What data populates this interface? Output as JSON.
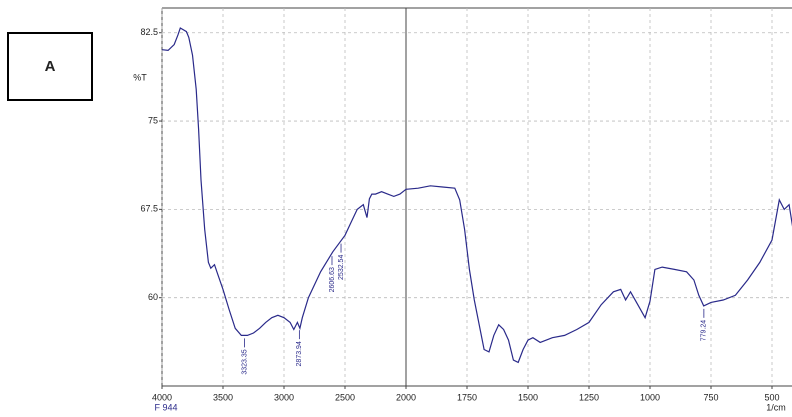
{
  "chart_data": {
    "type": "line",
    "panel_label": "A",
    "y_label": "%T",
    "x_label": "1/cm",
    "sample": "F 944",
    "color": "#2a2a8a",
    "grid": true,
    "xlim": [
      4000,
      400
    ],
    "ylim": [
      52.5,
      84.6
    ],
    "xticks": [
      4000,
      3500,
      3000,
      2500,
      2000,
      1750,
      1500,
      1250,
      1000,
      750,
      500
    ],
    "yticks": [
      {
        "value": 82.5,
        "label": "82.5"
      },
      75,
      {
        "value": 67.5,
        "label": "67.5"
      },
      60
    ],
    "x": [
      4000,
      3950,
      3900,
      3870,
      3850,
      3800,
      3780,
      3750,
      3720,
      3700,
      3680,
      3650,
      3620,
      3600,
      3570,
      3550,
      3500,
      3450,
      3400,
      3350,
      3300,
      3250,
      3200,
      3150,
      3100,
      3050,
      3000,
      2950,
      2920,
      2890,
      2870,
      2850,
      2800,
      2700,
      2600,
      2500,
      2450,
      2400,
      2350,
      2320,
      2300,
      2280,
      2250,
      2200,
      2150,
      2100,
      2050,
      2000,
      1950,
      1900,
      1850,
      1800,
      1780,
      1760,
      1740,
      1720,
      1700,
      1680,
      1660,
      1640,
      1620,
      1600,
      1580,
      1560,
      1540,
      1520,
      1500,
      1480,
      1450,
      1400,
      1350,
      1300,
      1250,
      1200,
      1150,
      1120,
      1100,
      1080,
      1050,
      1020,
      1000,
      980,
      950,
      900,
      850,
      820,
      800,
      780,
      750,
      700,
      650,
      600,
      550,
      500,
      470,
      450,
      430,
      410
    ],
    "values": [
      81.06,
      81.0,
      81.5,
      82.3,
      82.9,
      82.6,
      82.1,
      80.6,
      77.7,
      74.3,
      70.0,
      65.8,
      63.0,
      62.5,
      62.8,
      62.2,
      60.7,
      59.0,
      57.4,
      56.8,
      56.8,
      57.0,
      57.4,
      57.9,
      58.3,
      58.5,
      58.3,
      57.9,
      57.3,
      57.9,
      57.4,
      58.3,
      60.0,
      62.2,
      63.9,
      65.3,
      66.4,
      67.5,
      67.9,
      66.8,
      68.4,
      68.8,
      68.8,
      69.0,
      68.8,
      68.6,
      68.8,
      69.2,
      69.3,
      69.5,
      69.4,
      69.3,
      68.3,
      65.8,
      62.4,
      59.8,
      57.7,
      55.6,
      55.4,
      56.8,
      57.7,
      57.3,
      56.4,
      54.7,
      54.5,
      55.6,
      56.4,
      56.6,
      56.2,
      56.6,
      56.8,
      57.3,
      57.9,
      59.4,
      60.5,
      60.7,
      59.8,
      60.5,
      59.4,
      58.3,
      59.7,
      62.4,
      62.6,
      62.4,
      62.2,
      61.5,
      60.2,
      59.3,
      59.6,
      59.8,
      60.2,
      61.5,
      63.0,
      64.9,
      68.3,
      67.5,
      67.9,
      65.3
    ],
    "peaks": [
      3323.35,
      2873.94,
      2606.63,
      2532.54,
      779.24
    ]
  }
}
